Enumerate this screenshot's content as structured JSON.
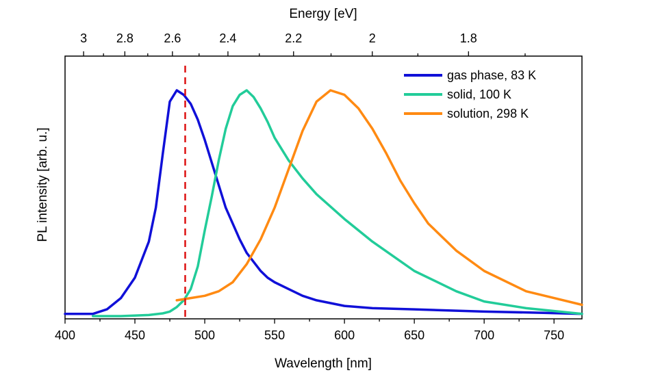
{
  "chart_data": {
    "type": "line",
    "xlabel": "Wavelength [nm]",
    "ylabel": "PL intensity [arb. u.]",
    "top_xlabel": "Energy [eV]",
    "xlim": [
      400,
      770
    ],
    "ylim": [
      0,
      1
    ],
    "x_ticks": [
      400,
      450,
      500,
      550,
      600,
      650,
      700,
      750
    ],
    "top_ticks": [
      3,
      2.8,
      2.6,
      2.4,
      2.2,
      2,
      1.8
    ],
    "y_ticks_labeled": false,
    "grid": false,
    "legend_position": "top-right",
    "series": [
      {
        "name": "gas phase, 83 K",
        "color": "#1010d8",
        "x": [
          400,
          420,
          430,
          440,
          450,
          460,
          465,
          470,
          475,
          480,
          485,
          490,
          495,
          500,
          505,
          510,
          515,
          520,
          525,
          530,
          535,
          540,
          545,
          550,
          560,
          570,
          580,
          600,
          620,
          650,
          700,
          740,
          770
        ],
        "y": [
          0.01,
          0.01,
          0.03,
          0.08,
          0.17,
          0.33,
          0.48,
          0.72,
          0.95,
          1.0,
          0.98,
          0.94,
          0.87,
          0.78,
          0.68,
          0.58,
          0.48,
          0.41,
          0.34,
          0.28,
          0.24,
          0.2,
          0.17,
          0.15,
          0.12,
          0.09,
          0.07,
          0.045,
          0.035,
          0.03,
          0.02,
          0.015,
          0.01
        ]
      },
      {
        "name": "solid, 100 K",
        "color": "#22cc99",
        "x": [
          420,
          440,
          460,
          470,
          475,
          480,
          485,
          490,
          495,
          500,
          505,
          510,
          515,
          520,
          525,
          530,
          535,
          540,
          545,
          550,
          560,
          570,
          580,
          600,
          620,
          650,
          680,
          700,
          730,
          770
        ],
        "y": [
          0.0,
          0.0,
          0.005,
          0.012,
          0.02,
          0.04,
          0.07,
          0.12,
          0.22,
          0.38,
          0.53,
          0.69,
          0.83,
          0.93,
          0.98,
          1.0,
          0.97,
          0.92,
          0.86,
          0.79,
          0.69,
          0.61,
          0.54,
          0.43,
          0.33,
          0.2,
          0.11,
          0.065,
          0.035,
          0.01
        ]
      },
      {
        "name": "solution, 298 K",
        "color": "#ff8a12",
        "x": [
          480,
          490,
          500,
          510,
          520,
          530,
          540,
          550,
          560,
          570,
          580,
          590,
          600,
          610,
          620,
          630,
          640,
          650,
          660,
          680,
          700,
          730,
          750,
          770
        ],
        "y": [
          0.07,
          0.08,
          0.09,
          0.11,
          0.15,
          0.23,
          0.34,
          0.48,
          0.65,
          0.82,
          0.95,
          1.0,
          0.98,
          0.92,
          0.83,
          0.72,
          0.6,
          0.5,
          0.41,
          0.29,
          0.2,
          0.11,
          0.08,
          0.05
        ]
      }
    ],
    "annotations": [
      {
        "type": "vertical-dashed-line",
        "x": 486,
        "color": "#dd1111"
      }
    ]
  }
}
